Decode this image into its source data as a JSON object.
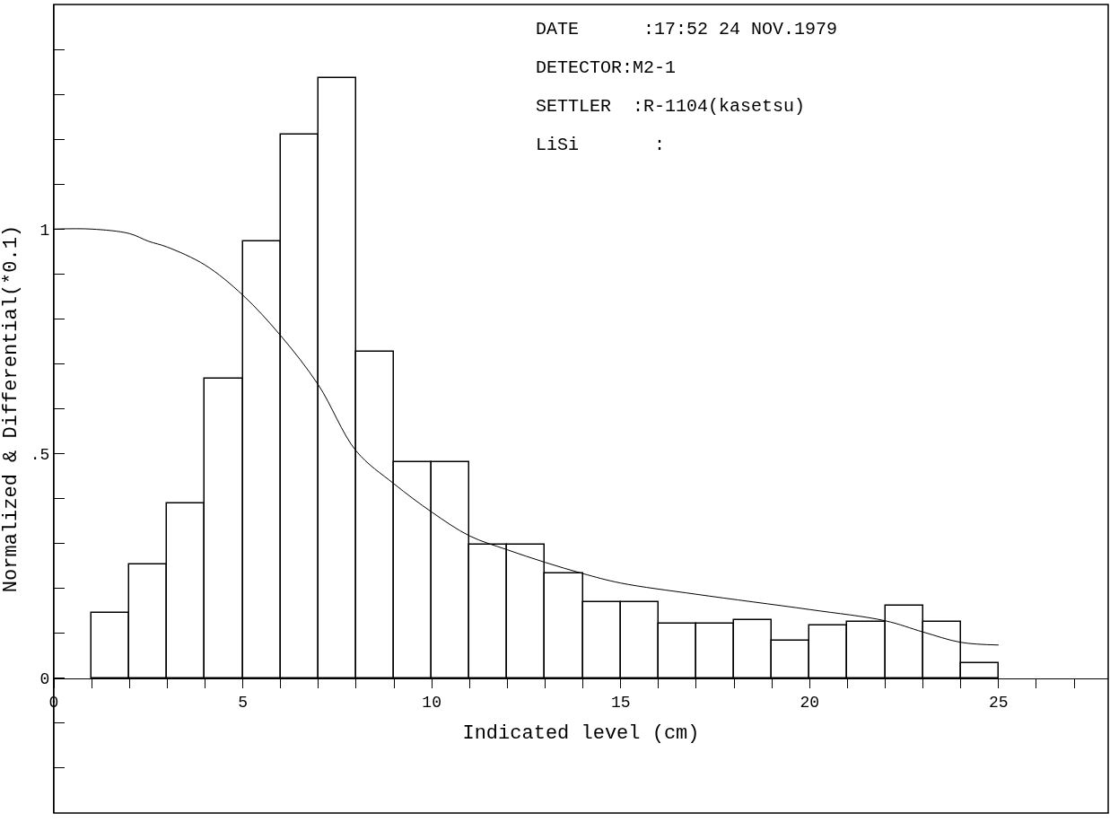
{
  "chart_data": {
    "type": "histogram",
    "xlabel": "Indicated level (cm)",
    "ylabel": "Normalized & Differential(*0.1)",
    "bins": [
      1,
      2,
      3,
      4,
      5,
      6,
      7,
      8,
      9,
      10,
      11,
      12,
      13,
      14,
      15,
      16,
      17,
      18,
      19,
      20,
      21,
      22,
      23,
      24,
      25
    ],
    "values": [
      0.145,
      0.254,
      0.389,
      0.666,
      0.973,
      1.21,
      1.336,
      0.727,
      0.481,
      0.481,
      0.298,
      0.298,
      0.233,
      0.17,
      0.17,
      0.122,
      0.122,
      0.13,
      0.084,
      0.118,
      0.126,
      0.162,
      0.126,
      0.034
    ],
    "color": "#000000",
    "series": [
      {
        "type": "line",
        "color": "#000000",
        "x": [
          0,
          1,
          2,
          2.5,
          3,
          4,
          5,
          6,
          7,
          8,
          9,
          10,
          11,
          12,
          13,
          14,
          15,
          17,
          20,
          22,
          23,
          24,
          25
        ],
        "values": [
          1,
          1,
          0.99,
          0.973,
          0.96,
          0.92,
          0.853,
          0.763,
          0.653,
          0.506,
          0.433,
          0.37,
          0.317,
          0.286,
          0.258,
          0.233,
          0.212,
          0.187,
          0.153,
          0.128,
          0.103,
          0.08,
          0.074
        ]
      }
    ],
    "xlim": [
      0,
      27.9
    ],
    "ylim": [
      -0.3,
      1.5
    ],
    "xticks": [
      0,
      {
        "value": 1,
        "label": null
      },
      {
        "value": 2,
        "label": null
      },
      {
        "value": 3,
        "label": null
      },
      {
        "value": 4,
        "label": null
      },
      5,
      {
        "value": 6,
        "label": null
      },
      {
        "value": 7,
        "label": null
      },
      {
        "value": 8,
        "label": null
      },
      {
        "value": 9,
        "label": null
      },
      10,
      {
        "value": 11,
        "label": null
      },
      {
        "value": 12,
        "label": null
      },
      {
        "value": 13,
        "label": null
      },
      {
        "value": 14,
        "label": null
      },
      15,
      {
        "value": 16,
        "label": null
      },
      {
        "value": 17,
        "label": null
      },
      {
        "value": 18,
        "label": null
      },
      {
        "value": 19,
        "label": null
      },
      20,
      {
        "value": 21,
        "label": null
      },
      {
        "value": 22,
        "label": null
      },
      {
        "value": 23,
        "label": null
      },
      {
        "value": 24,
        "label": null
      },
      25,
      {
        "value": 26,
        "label": null
      },
      {
        "value": 27,
        "label": null
      }
    ],
    "yticks": [
      {
        "value": -0.2,
        "label": null
      },
      {
        "value": -0.1,
        "label": null
      },
      0,
      {
        "value": 0.1,
        "label": null
      },
      {
        "value": 0.2,
        "label": null
      },
      {
        "value": 0.3,
        "label": null
      },
      {
        "value": 0.4,
        "label": null
      },
      {
        "value": 0.5,
        "label": ".5"
      },
      {
        "value": 0.6,
        "label": null
      },
      {
        "value": 0.7,
        "label": null
      },
      {
        "value": 0.8,
        "label": null
      },
      {
        "value": 0.9,
        "label": null
      },
      1,
      {
        "value": 1.1,
        "label": null
      },
      {
        "value": 1.2,
        "label": null
      },
      {
        "value": 1.3,
        "label": null
      },
      {
        "value": 1.4,
        "label": null
      }
    ],
    "annotations": [
      "DATE      :17:52 24 NOV.1979",
      "DETECTOR:M2-1",
      "SETTLER  :R-1104(kasetsu)",
      "LiSi       :"
    ]
  }
}
